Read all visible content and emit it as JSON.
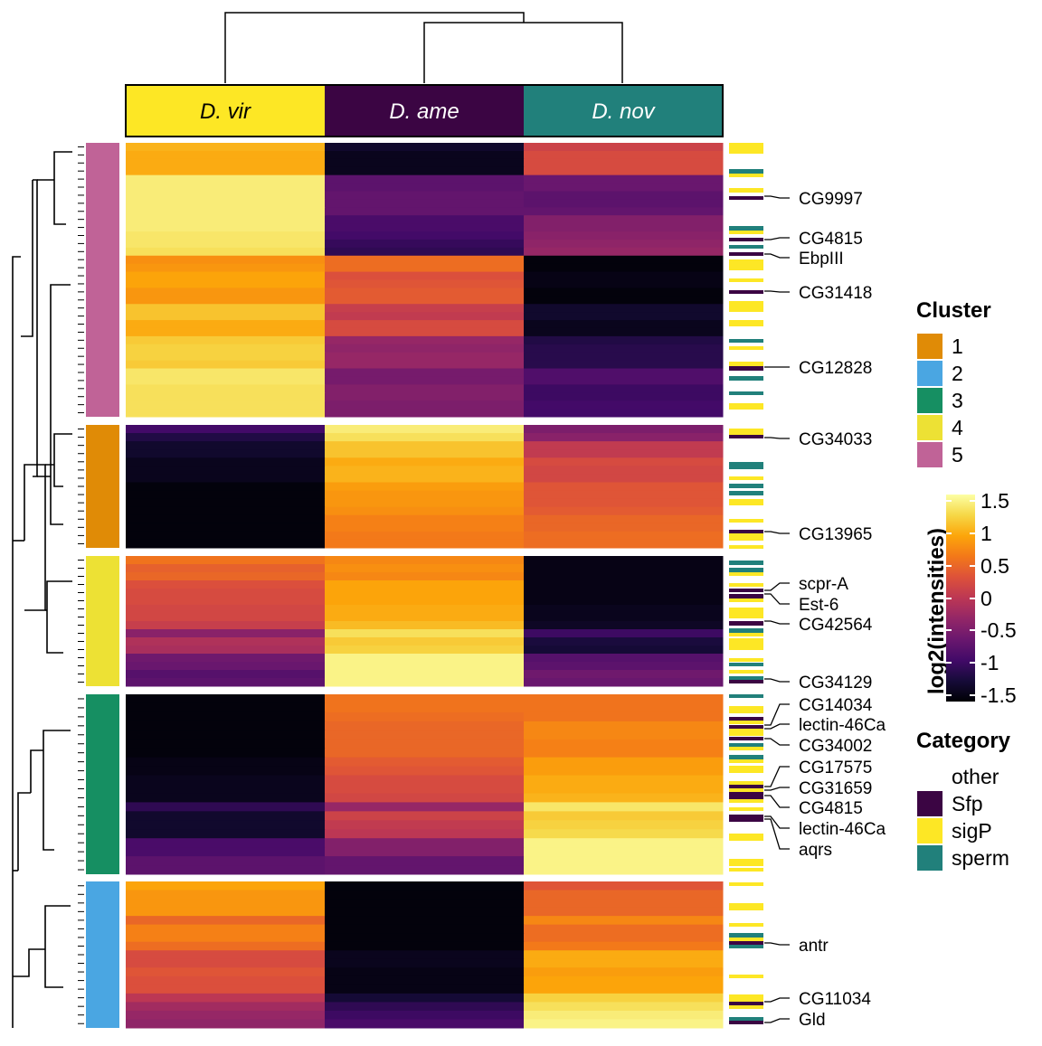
{
  "chart_data": {
    "type": "heatmap",
    "title": "",
    "columns": [
      {
        "label": "D. vir",
        "color": "#fde725",
        "text_color": "#000000"
      },
      {
        "label": "D. ame",
        "color": "#3b0543",
        "text_color": "#ffffff"
      },
      {
        "label": "D. nov",
        "color": "#21807b",
        "text_color": "#ffffff"
      }
    ],
    "column_dendrogram": "((D. ame, D. nov), D. vir)",
    "colorbar": {
      "title": "log2(intensities)",
      "range": [
        -1.6,
        1.6
      ],
      "ticks": [
        1.5,
        1,
        0.5,
        0,
        -0.5,
        -1,
        -1.5
      ],
      "tick_labels": [
        "1.5",
        "1",
        "0.5",
        "0",
        "-0.5",
        "-1",
        "-1.5"
      ],
      "colormap": "inferno"
    },
    "clusters": [
      {
        "id": "5",
        "color": "#c06397",
        "rows": [
          [
            1.05,
            -1.35,
            0.15
          ],
          [
            1.0,
            -1.45,
            0.25
          ],
          [
            1.0,
            -1.45,
            0.25
          ],
          [
            1.0,
            -1.45,
            0.25
          ],
          [
            1.45,
            -0.75,
            -0.65
          ],
          [
            1.45,
            -0.75,
            -0.65
          ],
          [
            1.45,
            -0.7,
            -0.75
          ],
          [
            1.45,
            -0.7,
            -0.75
          ],
          [
            1.45,
            -0.7,
            -0.7
          ],
          [
            1.45,
            -0.9,
            -0.45
          ],
          [
            1.45,
            -0.9,
            -0.45
          ],
          [
            1.4,
            -0.95,
            -0.4
          ],
          [
            1.4,
            -1.05,
            -0.35
          ],
          [
            1.35,
            -1.1,
            -0.3
          ],
          [
            0.8,
            0.55,
            -1.55
          ],
          [
            0.85,
            0.55,
            -1.55
          ],
          [
            0.95,
            0.3,
            -1.5
          ],
          [
            0.95,
            0.35,
            -1.5
          ],
          [
            0.85,
            0.4,
            -1.55
          ],
          [
            0.85,
            0.4,
            -1.55
          ],
          [
            1.15,
            0.1,
            -1.35
          ],
          [
            1.15,
            0.05,
            -1.35
          ],
          [
            1.0,
            0.25,
            -1.45
          ],
          [
            1.0,
            0.25,
            -1.45
          ],
          [
            1.2,
            -0.3,
            -1.2
          ],
          [
            1.25,
            -0.35,
            -1.15
          ],
          [
            1.25,
            -0.3,
            -1.15
          ],
          [
            1.2,
            -0.3,
            -1.15
          ],
          [
            1.4,
            -0.55,
            -0.85
          ],
          [
            1.4,
            -0.55,
            -0.85
          ],
          [
            1.35,
            -0.45,
            -1.0
          ],
          [
            1.35,
            -0.45,
            -1.0
          ],
          [
            1.35,
            -0.5,
            -0.95
          ],
          [
            1.35,
            -0.5,
            -0.95
          ]
        ]
      },
      {
        "id": "1",
        "color": "#e08b06",
        "rows": [
          [
            -0.95,
            1.45,
            -0.5
          ],
          [
            -1.2,
            1.35,
            -0.4
          ],
          [
            -1.35,
            1.15,
            0.05
          ],
          [
            -1.35,
            1.15,
            0.05
          ],
          [
            -1.45,
            1.0,
            0.25
          ],
          [
            -1.45,
            1.05,
            0.2
          ],
          [
            -1.45,
            1.05,
            0.2
          ],
          [
            -1.55,
            0.9,
            0.35
          ],
          [
            -1.55,
            0.85,
            0.35
          ],
          [
            -1.55,
            0.85,
            0.35
          ],
          [
            -1.55,
            0.8,
            0.4
          ],
          [
            -1.55,
            0.7,
            0.5
          ],
          [
            -1.55,
            0.7,
            0.5
          ],
          [
            -1.55,
            0.65,
            0.55
          ],
          [
            -1.55,
            0.65,
            0.55
          ]
        ]
      },
      {
        "id": "4",
        "color": "#ede134",
        "rows": [
          [
            0.6,
            0.75,
            -1.5
          ],
          [
            0.45,
            0.8,
            -1.5
          ],
          [
            0.5,
            0.75,
            -1.5
          ],
          [
            0.3,
            0.95,
            -1.5
          ],
          [
            0.25,
            0.95,
            -1.5
          ],
          [
            0.25,
            0.95,
            -1.5
          ],
          [
            0.2,
            1.0,
            -1.45
          ],
          [
            0.2,
            1.0,
            -1.45
          ],
          [
            0.1,
            1.1,
            -1.4
          ],
          [
            -0.4,
            1.35,
            -1.0
          ],
          [
            -0.1,
            1.2,
            -1.25
          ],
          [
            -0.15,
            1.25,
            -1.3
          ],
          [
            -0.6,
            1.5,
            -0.8
          ],
          [
            -0.65,
            1.5,
            -0.75
          ],
          [
            -0.8,
            1.5,
            -0.6
          ],
          [
            -0.75,
            1.5,
            -0.65
          ]
        ]
      },
      {
        "id": "3",
        "color": "#168f62",
        "rows": [
          [
            -1.55,
            0.6,
            0.6
          ],
          [
            -1.55,
            0.6,
            0.6
          ],
          [
            -1.55,
            0.55,
            0.6
          ],
          [
            -1.55,
            0.5,
            0.75
          ],
          [
            -1.55,
            0.5,
            0.75
          ],
          [
            -1.55,
            0.5,
            0.7
          ],
          [
            -1.55,
            0.5,
            0.7
          ],
          [
            -1.5,
            0.4,
            0.9
          ],
          [
            -1.5,
            0.35,
            0.9
          ],
          [
            -1.45,
            0.25,
            1.0
          ],
          [
            -1.45,
            0.25,
            1.0
          ],
          [
            -1.45,
            0.2,
            1.05
          ],
          [
            -1.1,
            -0.3,
            1.4
          ],
          [
            -1.35,
            0.15,
            1.2
          ],
          [
            -1.35,
            0.05,
            1.25
          ],
          [
            -1.35,
            0.0,
            1.3
          ],
          [
            -0.9,
            -0.45,
            1.5
          ],
          [
            -0.9,
            -0.45,
            1.5
          ],
          [
            -0.75,
            -0.7,
            1.5
          ],
          [
            -0.75,
            -0.7,
            1.5
          ]
        ]
      },
      {
        "id": "2",
        "color": "#4aa6e2",
        "rows": [
          [
            0.95,
            -1.55,
            0.35
          ],
          [
            0.85,
            -1.55,
            0.5
          ],
          [
            0.85,
            -1.55,
            0.5
          ],
          [
            0.85,
            -1.55,
            0.5
          ],
          [
            0.5,
            -1.55,
            0.75
          ],
          [
            0.7,
            -1.55,
            0.55
          ],
          [
            0.7,
            -1.55,
            0.55
          ],
          [
            0.55,
            -1.55,
            0.65
          ],
          [
            0.25,
            -1.45,
            1.0
          ],
          [
            0.25,
            -1.45,
            1.0
          ],
          [
            0.35,
            -1.5,
            0.9
          ],
          [
            0.3,
            -1.5,
            0.95
          ],
          [
            0.3,
            -1.5,
            0.95
          ],
          [
            0.0,
            -1.3,
            1.25
          ],
          [
            -0.2,
            -1.1,
            1.35
          ],
          [
            -0.3,
            -1.0,
            1.45
          ],
          [
            -0.35,
            -0.9,
            1.5
          ]
        ]
      }
    ],
    "category_legend": {
      "title": "Category",
      "items": [
        {
          "label": "other",
          "color": null
        },
        {
          "label": "Sfp",
          "color": "#3b0543"
        },
        {
          "label": "sigP",
          "color": "#fde725"
        },
        {
          "label": "sperm",
          "color": "#21807b"
        }
      ]
    },
    "cluster_legend": {
      "title": "Cluster",
      "items": [
        {
          "label": "1",
          "color": "#e08b06"
        },
        {
          "label": "2",
          "color": "#4aa6e2"
        },
        {
          "label": "3",
          "color": "#168f62"
        },
        {
          "label": "4",
          "color": "#ede134"
        },
        {
          "label": "5",
          "color": "#c06397"
        }
      ]
    },
    "row_annotations": [
      "CG9997",
      "CG4815",
      "EbpIII",
      "CG31418",
      "CG12828",
      "CG34033",
      "CG13965",
      "scpr-A",
      "Est-6",
      "CG42564",
      "CG34129",
      "CG14034",
      "lectin-46Ca",
      "CG34002",
      "CG17575",
      "CG31659",
      "CG4815",
      "lectin-46Ca",
      "aqrs",
      "antr",
      "CG11034",
      "Gld"
    ]
  }
}
